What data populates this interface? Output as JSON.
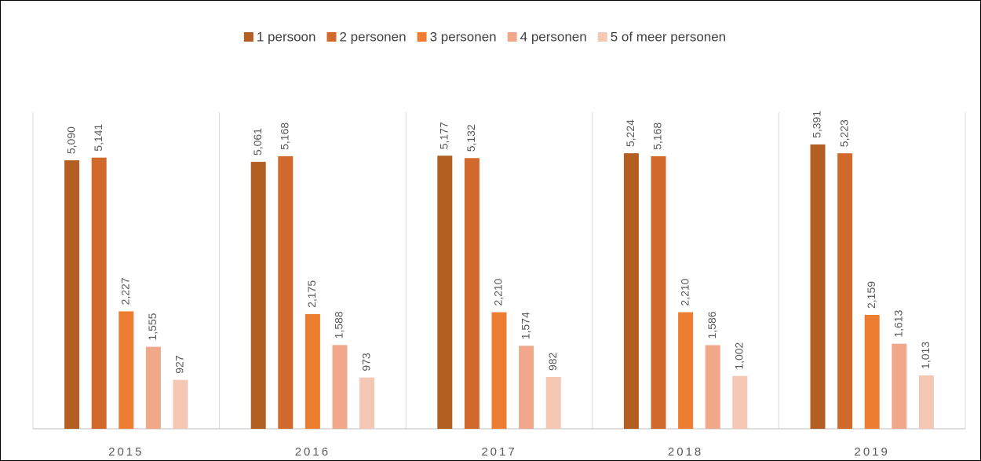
{
  "chart_data": {
    "type": "bar",
    "categories": [
      "2015",
      "2016",
      "2017",
      "2018",
      "2019"
    ],
    "series": [
      {
        "name": "1 persoon",
        "color": "#b45f22",
        "values": [
          5090,
          5061,
          5177,
          5224,
          5391
        ],
        "value_labels": [
          "5,090",
          "5,061",
          "5,177",
          "5,224",
          "5,391"
        ]
      },
      {
        "name": "2 personen",
        "color": "#d0692b",
        "values": [
          5141,
          5168,
          5132,
          5168,
          5223
        ],
        "value_labels": [
          "5,141",
          "5,168",
          "5,132",
          "5,168",
          "5,223"
        ]
      },
      {
        "name": "3 personen",
        "color": "#ed7d31",
        "values": [
          2227,
          2175,
          2210,
          2210,
          2159
        ],
        "value_labels": [
          "2,227",
          "2,175",
          "2,210",
          "2,210",
          "2,159"
        ]
      },
      {
        "name": "4 personen",
        "color": "#f1a88a",
        "values": [
          1555,
          1588,
          1574,
          1586,
          1613
        ],
        "value_labels": [
          "1,555",
          "1,588",
          "1,574",
          "1,586",
          "1,613"
        ]
      },
      {
        "name": "5 of meer personen",
        "color": "#f5c7b5",
        "values": [
          927,
          973,
          982,
          1002,
          1013
        ],
        "value_labels": [
          "927",
          "973",
          "982",
          "1,002",
          "1,013"
        ]
      }
    ],
    "ylim": [
      0,
      6000
    ]
  }
}
